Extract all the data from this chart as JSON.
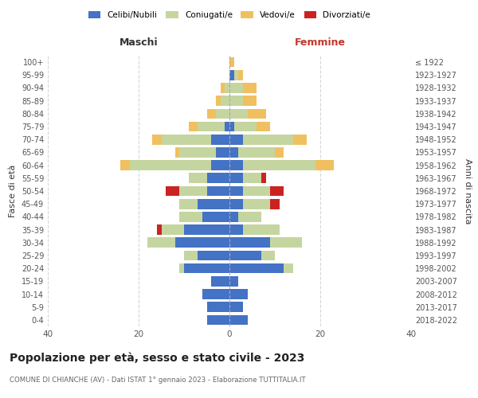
{
  "age_groups": [
    "0-4",
    "5-9",
    "10-14",
    "15-19",
    "20-24",
    "25-29",
    "30-34",
    "35-39",
    "40-44",
    "45-49",
    "50-54",
    "55-59",
    "60-64",
    "65-69",
    "70-74",
    "75-79",
    "80-84",
    "85-89",
    "90-94",
    "95-99",
    "100+"
  ],
  "birth_years": [
    "2018-2022",
    "2013-2017",
    "2008-2012",
    "2003-2007",
    "1998-2002",
    "1993-1997",
    "1988-1992",
    "1983-1987",
    "1978-1982",
    "1973-1977",
    "1968-1972",
    "1963-1967",
    "1958-1962",
    "1953-1957",
    "1948-1952",
    "1943-1947",
    "1938-1942",
    "1933-1937",
    "1928-1932",
    "1923-1927",
    "≤ 1922"
  ],
  "colors": {
    "celibi": "#4472c4",
    "coniugati": "#c5d5a0",
    "vedovi": "#f0c060",
    "divorziati": "#cc2222"
  },
  "maschi": {
    "celibi": [
      5,
      5,
      6,
      4,
      10,
      7,
      12,
      10,
      6,
      7,
      5,
      5,
      4,
      3,
      4,
      1,
      0,
      0,
      0,
      0,
      0
    ],
    "coniugati": [
      0,
      0,
      0,
      0,
      1,
      3,
      6,
      5,
      5,
      4,
      6,
      4,
      18,
      8,
      11,
      6,
      3,
      2,
      1,
      0,
      0
    ],
    "vedovi": [
      0,
      0,
      0,
      0,
      0,
      0,
      0,
      0,
      0,
      0,
      0,
      0,
      2,
      1,
      2,
      2,
      2,
      1,
      1,
      0,
      0
    ],
    "divorziati": [
      0,
      0,
      0,
      0,
      0,
      0,
      0,
      1,
      0,
      0,
      3,
      0,
      0,
      0,
      0,
      0,
      0,
      0,
      0,
      0,
      0
    ]
  },
  "femmine": {
    "celibi": [
      4,
      3,
      4,
      2,
      12,
      7,
      9,
      3,
      2,
      3,
      3,
      3,
      3,
      2,
      3,
      1,
      0,
      0,
      0,
      1,
      0
    ],
    "coniugati": [
      0,
      0,
      0,
      0,
      2,
      3,
      7,
      8,
      5,
      6,
      6,
      4,
      16,
      8,
      11,
      5,
      4,
      3,
      3,
      1,
      0
    ],
    "vedovi": [
      0,
      0,
      0,
      0,
      0,
      0,
      0,
      0,
      0,
      0,
      0,
      0,
      4,
      2,
      3,
      3,
      4,
      3,
      3,
      1,
      1
    ],
    "divorziati": [
      0,
      0,
      0,
      0,
      0,
      0,
      0,
      0,
      0,
      2,
      3,
      1,
      0,
      0,
      0,
      0,
      0,
      0,
      0,
      0,
      0
    ]
  },
  "xlim": 40,
  "title": "Popolazione per età, sesso e stato civile - 2023",
  "subtitle": "COMUNE DI CHIANCHE (AV) - Dati ISTAT 1° gennaio 2023 - Elaborazione TUTTITALIA.IT",
  "ylabel_left": "Fasce di età",
  "ylabel_right": "Anni di nascita",
  "xlabel_left": "Maschi",
  "xlabel_right": "Femmine",
  "bg_color": "#ffffff"
}
